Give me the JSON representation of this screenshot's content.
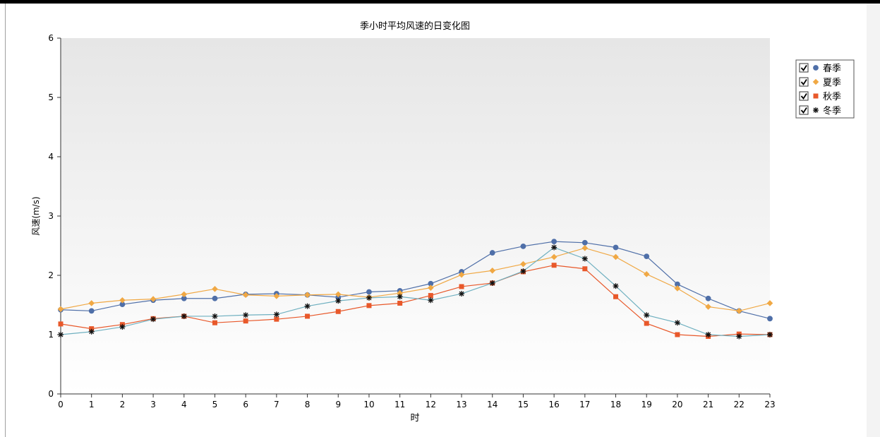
{
  "chart_data": {
    "type": "line",
    "title": "季小时平均风速的日变化图",
    "xlabel": "时",
    "ylabel": "风速(m/s)",
    "ylim": [
      0,
      6
    ],
    "xlim": [
      0,
      23
    ],
    "yticks": [
      0,
      1,
      2,
      3,
      4,
      5,
      6
    ],
    "x": [
      0,
      1,
      2,
      3,
      4,
      5,
      6,
      7,
      8,
      9,
      10,
      11,
      12,
      13,
      14,
      15,
      16,
      17,
      18,
      19,
      20,
      21,
      22,
      23
    ],
    "legend_position": "top-right",
    "grid": false,
    "series": [
      {
        "name": "春季",
        "color": "#4f6fa8",
        "marker": "circle",
        "values": [
          1.42,
          1.4,
          1.51,
          1.58,
          1.61,
          1.61,
          1.68,
          1.69,
          1.67,
          1.63,
          1.72,
          1.74,
          1.86,
          2.06,
          2.38,
          2.49,
          2.57,
          2.55,
          2.47,
          2.32,
          1.85,
          1.61,
          1.4,
          1.27
        ]
      },
      {
        "name": "夏季",
        "color": "#f0a844",
        "marker": "diamond",
        "values": [
          1.43,
          1.53,
          1.58,
          1.6,
          1.68,
          1.77,
          1.67,
          1.65,
          1.67,
          1.68,
          1.63,
          1.7,
          1.79,
          2.01,
          2.08,
          2.19,
          2.31,
          2.46,
          2.31,
          2.02,
          1.78,
          1.47,
          1.4,
          1.53
        ]
      },
      {
        "name": "秋季",
        "color": "#e8582a",
        "marker": "square",
        "values": [
          1.18,
          1.1,
          1.17,
          1.27,
          1.31,
          1.2,
          1.23,
          1.26,
          1.31,
          1.39,
          1.49,
          1.53,
          1.66,
          1.81,
          1.87,
          2.06,
          2.17,
          2.11,
          1.64,
          1.19,
          1.0,
          0.97,
          1.01,
          1.0
        ]
      },
      {
        "name": "冬季",
        "color": "#6fb0c0",
        "marker_color": "#111111",
        "marker": "star",
        "values": [
          1.0,
          1.05,
          1.13,
          1.26,
          1.31,
          1.31,
          1.33,
          1.34,
          1.48,
          1.57,
          1.62,
          1.64,
          1.58,
          1.69,
          1.87,
          2.07,
          2.47,
          2.28,
          1.82,
          1.33,
          1.2,
          1.0,
          0.97,
          1.0
        ]
      }
    ]
  }
}
